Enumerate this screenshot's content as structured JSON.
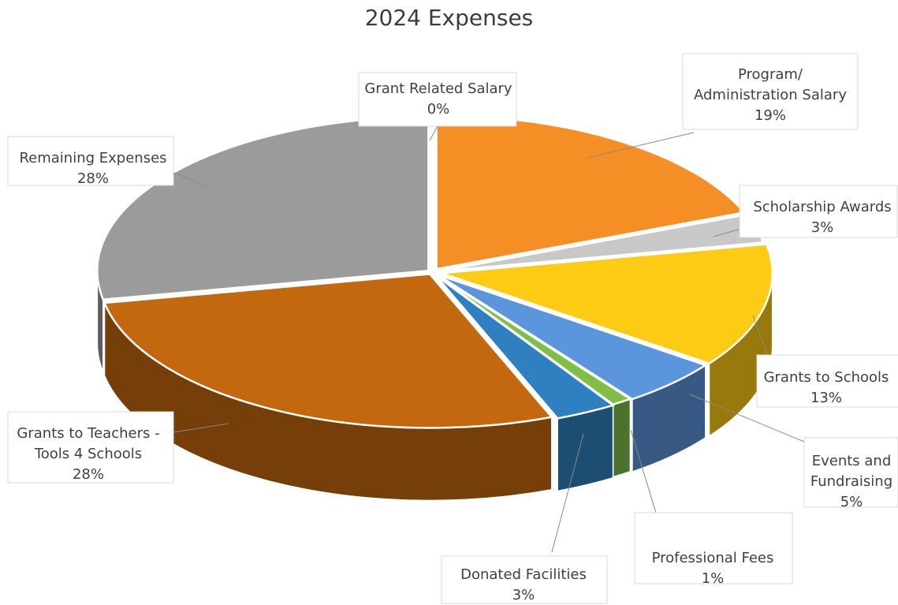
{
  "chart_data": {
    "type": "pie",
    "title": "2024 Expenses",
    "style": "3d-exploded-pie",
    "slices": [
      {
        "label": "Grant Related Salary",
        "value_label": "0%",
        "value": 0,
        "color": "#f58e25"
      },
      {
        "label": "Program/ Administration Salary",
        "value_label": "19%",
        "value": 19,
        "color": "#f58e25"
      },
      {
        "label": "Scholarship Awards",
        "value_label": "3%",
        "value": 3,
        "color": "#c8c8c8"
      },
      {
        "label": "Grants to Schools",
        "value_label": "13%",
        "value": 13,
        "color": "#fdcb14"
      },
      {
        "label": "Events and Fundraising",
        "value_label": "5%",
        "value": 5,
        "color": "#5b95dc"
      },
      {
        "label": "Professional Fees",
        "value_label": "1%",
        "value": 1,
        "color": "#7fbf48"
      },
      {
        "label": "Donated Facilities",
        "value_label": "3%",
        "value": 3,
        "color": "#2f80c0"
      },
      {
        "label": "Grants to Teachers - Tools 4 Schools",
        "value_label": "28%",
        "value": 28,
        "color": "#c4680f"
      },
      {
        "label": "Remaining Expenses",
        "value_label": "28%",
        "value": 28,
        "color": "#9b9b9b"
      }
    ]
  }
}
